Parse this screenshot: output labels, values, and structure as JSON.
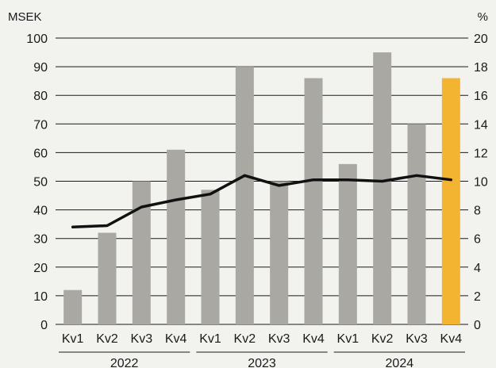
{
  "chart_data": {
    "type": "bar",
    "categories": [
      "Kv1",
      "Kv2",
      "Kv3",
      "Kv4",
      "Kv1",
      "Kv2",
      "Kv3",
      "Kv4",
      "Kv1",
      "Kv2",
      "Kv3",
      "Kv4"
    ],
    "groups": [
      {
        "label": "2022",
        "count": 4
      },
      {
        "label": "2023",
        "count": 4
      },
      {
        "label": "2024",
        "count": 4
      }
    ],
    "series": [
      {
        "type": "bar",
        "axis": "left",
        "values": [
          12,
          32,
          50,
          61,
          47,
          90,
          50,
          86,
          56,
          95,
          70,
          86
        ],
        "colors": [
          "#a9a8a2",
          "#a9a8a2",
          "#a9a8a2",
          "#a9a8a2",
          "#a9a8a2",
          "#a9a8a2",
          "#a9a8a2",
          "#a9a8a2",
          "#a9a8a2",
          "#a9a8a2",
          "#a9a8a2",
          "#f2b431"
        ]
      },
      {
        "type": "line",
        "axis": "right",
        "color": "#111111",
        "values": [
          6.8,
          6.9,
          8.2,
          8.7,
          9.1,
          10.4,
          9.7,
          10.1,
          10.1,
          10.0,
          10.4,
          10.1
        ]
      }
    ],
    "y_left": {
      "unit": "MSEK",
      "min": 0,
      "max": 100,
      "ticks": [
        0,
        10,
        20,
        30,
        40,
        50,
        60,
        70,
        80,
        90,
        100
      ]
    },
    "y_right": {
      "unit": "%",
      "min": 0,
      "max": 20,
      "ticks": [
        0,
        2,
        4,
        6,
        8,
        10,
        12,
        14,
        16,
        18,
        20
      ]
    },
    "grid": true,
    "legend": "none",
    "title": "",
    "xlabel": ""
  }
}
